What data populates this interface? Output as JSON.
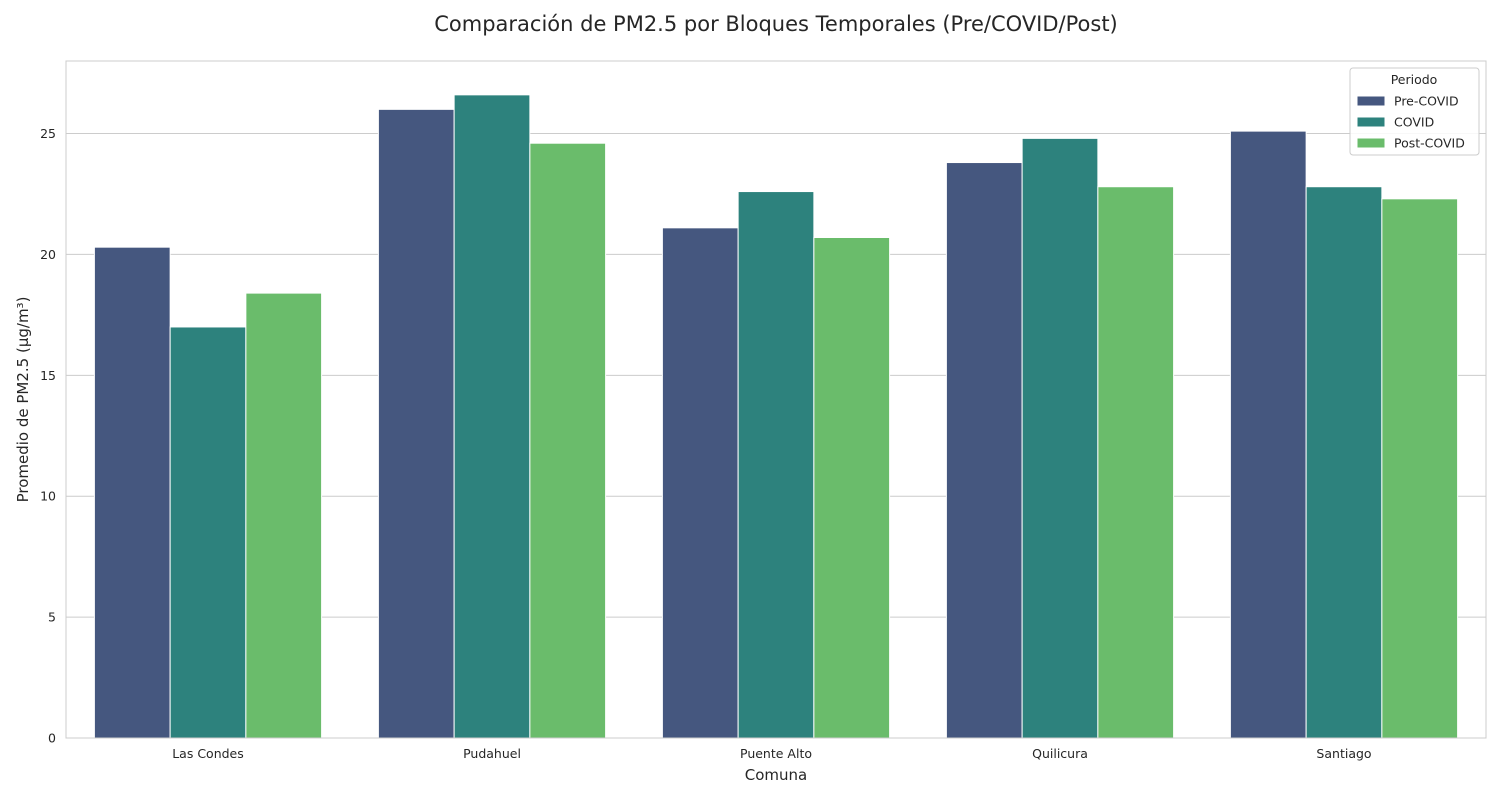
{
  "chart_data": {
    "type": "bar",
    "title": "Comparación de PM2.5 por Bloques Temporales (Pre/COVID/Post)",
    "xlabel": "Comuna",
    "ylabel": "Promedio de PM2.5 (µg/m³)",
    "categories": [
      "Las Condes",
      "Pudahuel",
      "Puente Alto",
      "Quilicura",
      "Santiago"
    ],
    "series": [
      {
        "name": "Pre-COVID",
        "color": "#45577f",
        "values": [
          20.3,
          26.0,
          21.1,
          23.8,
          25.1
        ]
      },
      {
        "name": "COVID",
        "color": "#2d827d",
        "values": [
          17.0,
          26.6,
          22.6,
          24.8,
          22.8
        ]
      },
      {
        "name": "Post-COVID",
        "color": "#6abc6b",
        "values": [
          18.4,
          24.6,
          20.7,
          22.8,
          22.3
        ]
      }
    ],
    "ylim": [
      0,
      28
    ],
    "yticks": [
      0,
      5,
      10,
      15,
      20,
      25
    ],
    "grid": true,
    "legend": {
      "title": "Periodo",
      "position": "top-right"
    }
  }
}
